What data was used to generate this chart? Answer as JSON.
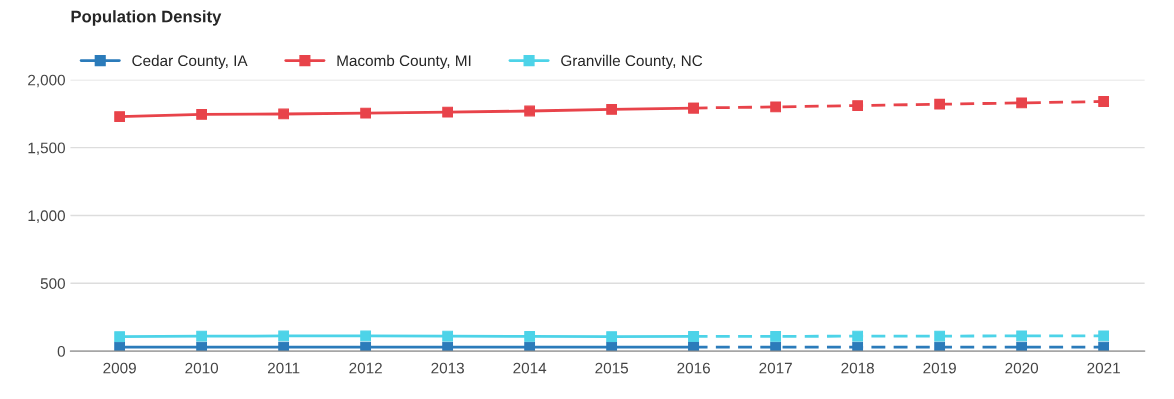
{
  "chart_data": {
    "type": "line",
    "title": "Population Density",
    "categories": [
      "2009",
      "2010",
      "2011",
      "2012",
      "2013",
      "2014",
      "2015",
      "2016",
      "2017",
      "2018",
      "2019",
      "2020",
      "2021"
    ],
    "series": [
      {
        "name": "Cedar County, IA",
        "color": "#2b7bba",
        "values": [
          30,
          30,
          30,
          30,
          30,
          30,
          30,
          30,
          null,
          null,
          null,
          null,
          null
        ]
      },
      {
        "name": "Macomb County, MI",
        "color": "#e8434a",
        "values": [
          1728,
          1745,
          1748,
          1755,
          1762,
          1770,
          1782,
          1792,
          null,
          null,
          null,
          null,
          null
        ]
      },
      {
        "name": "Granville County, NC",
        "color": "#4dd3e8",
        "values": [
          107,
          110,
          112,
          112,
          110,
          108,
          107,
          108,
          null,
          null,
          null,
          null,
          null
        ]
      },
      {
        "color": "#2b7bba",
        "line_style": "dashed",
        "values": [
          null,
          null,
          null,
          null,
          null,
          null,
          null,
          30,
          30,
          30,
          30,
          30,
          30
        ]
      },
      {
        "color": "#e8434a",
        "line_style": "dashed",
        "values": [
          null,
          null,
          null,
          null,
          null,
          null,
          null,
          1792,
          1800,
          1810,
          1820,
          1830,
          1840
        ]
      },
      {
        "color": "#4dd3e8",
        "line_style": "dashed",
        "values": [
          null,
          null,
          null,
          null,
          null,
          null,
          null,
          108,
          109,
          110,
          111,
          112,
          113
        ]
      }
    ],
    "ylim": [
      0,
      2000
    ],
    "yticks": [
      {
        "value": 0,
        "label": "0"
      },
      {
        "value": 500,
        "label": "500"
      },
      {
        "value": 1000,
        "label": "1,000"
      },
      {
        "value": 1500,
        "label": "1,500"
      },
      {
        "value": 2000,
        "label": "2,000"
      }
    ],
    "grid": "y",
    "legend": "top left",
    "marker": "square",
    "line_style": "solid"
  }
}
